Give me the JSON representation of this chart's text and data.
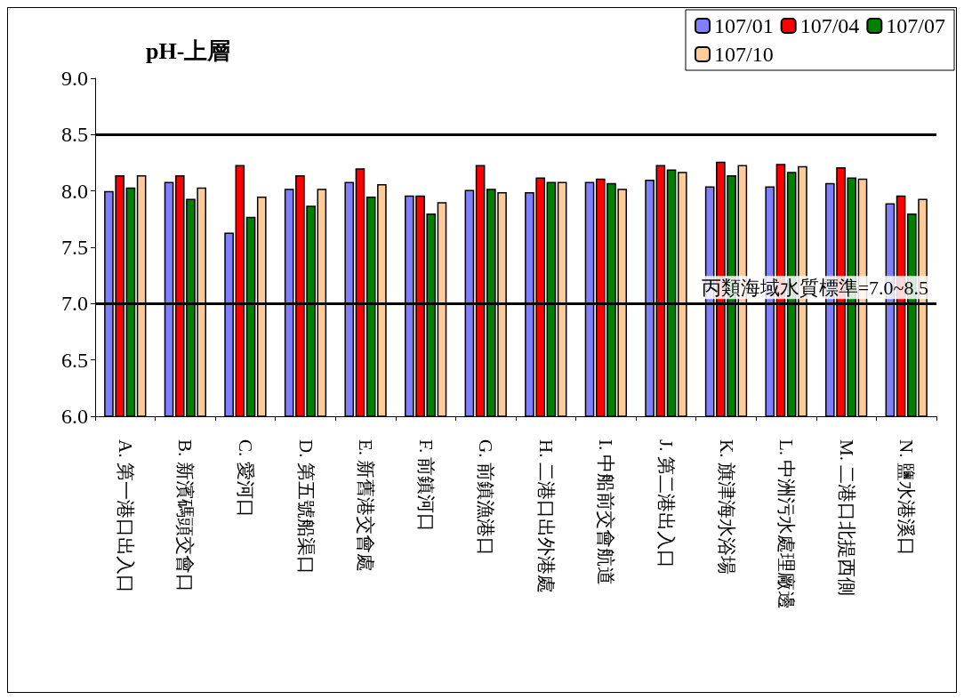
{
  "chart_data": {
    "type": "bar",
    "title": "pH-上層",
    "categories": [
      "A. 第一港口出入口",
      "B. 新濱碼頭交會口",
      "C. 愛河口",
      "D. 第五號船渠口",
      "E. 新舊港交會處",
      "F. 前鎮河口",
      "G. 前鎮漁港口",
      "H. 二港口出外港處",
      "I. 中船前交會航道",
      "J. 第二港出入口",
      "K. 旗津海水浴場",
      "L. 中洲污水處理廠邊",
      "M. 二港口北提西側",
      "N. 鹽水港溪口"
    ],
    "series": [
      {
        "name": "107/01",
        "color": "#8080ff",
        "values": [
          8.0,
          8.08,
          7.63,
          8.02,
          8.08,
          7.96,
          8.01,
          7.99,
          8.08,
          8.1,
          8.04,
          8.04,
          8.07,
          7.89
        ]
      },
      {
        "name": "107/04",
        "color": "#ff0000",
        "values": [
          8.14,
          8.14,
          8.23,
          8.14,
          8.2,
          7.96,
          8.23,
          8.12,
          8.11,
          8.23,
          8.26,
          8.24,
          8.21,
          7.96
        ]
      },
      {
        "name": "107/07",
        "color": "#008000",
        "values": [
          8.03,
          7.93,
          7.77,
          7.87,
          7.95,
          7.8,
          8.02,
          8.08,
          8.07,
          8.19,
          8.14,
          8.17,
          8.12,
          7.8
        ]
      },
      {
        "name": "107/10",
        "color": "#ffcc99",
        "values": [
          8.14,
          8.03,
          7.95,
          8.02,
          8.06,
          7.9,
          7.99,
          8.08,
          8.02,
          8.17,
          8.23,
          8.22,
          8.11,
          7.93
        ]
      }
    ],
    "ylim": [
      6.0,
      9.0
    ],
    "yticks": [
      {
        "value": 6,
        "label": "6.0"
      },
      {
        "value": 6.5,
        "label": "6.5"
      },
      {
        "value": 7,
        "label": "7.0"
      },
      {
        "value": 7.5,
        "label": "7.5"
      },
      {
        "value": 8,
        "label": "8.0"
      },
      {
        "value": 8.5,
        "label": "8.5"
      },
      {
        "value": 9,
        "label": "9.0"
      }
    ],
    "ref_lines": [
      {
        "axis": "y",
        "value": 8.5,
        "color": "#000000"
      },
      {
        "axis": "y",
        "value": 7.0,
        "color": "#000000",
        "label": "丙類海域水質標準=7.0~8.5"
      }
    ],
    "grid": false,
    "legend": "top right"
  }
}
